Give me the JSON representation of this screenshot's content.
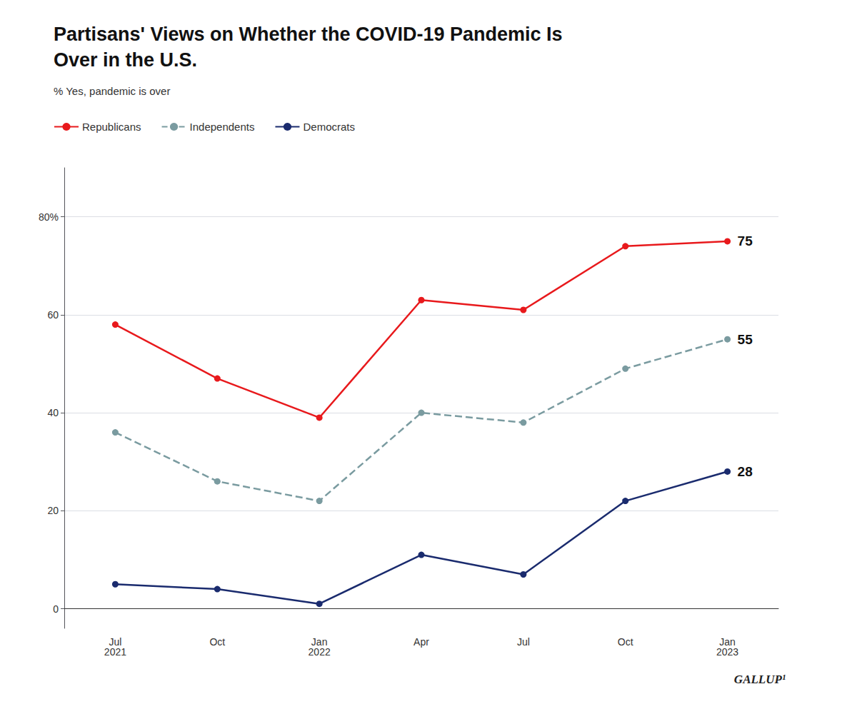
{
  "chart_data": {
    "type": "line",
    "title": "Partisans' Views on Whether the COVID-19 Pandemic Is\nOver in the U.S.",
    "subtitle": "% Yes, pandemic is over",
    "categories": [
      "Jul\n2021",
      "Oct",
      "Jan\n2022",
      "Apr",
      "Jul",
      "Oct",
      "Jan\n2023"
    ],
    "series": [
      {
        "name": "Republicans",
        "color": "#e8191c",
        "marker": "circle",
        "line_style": "solid",
        "values": [
          58,
          47,
          39,
          63,
          61,
          74,
          75
        ]
      },
      {
        "name": "Independents",
        "color": "#7a9ba0",
        "marker": "circle",
        "line_style": "dashed",
        "values": [
          36,
          26,
          22,
          40,
          38,
          49,
          55
        ]
      },
      {
        "name": "Democrats",
        "color": "#1a2b6e",
        "marker": "circle",
        "line_style": "solid",
        "values": [
          5,
          4,
          1,
          11,
          7,
          22,
          28
        ]
      }
    ],
    "ylim": [
      -4,
      90
    ],
    "yticks": [
      0,
      20,
      40,
      60,
      {
        "value": 80,
        "label": "80%"
      }
    ],
    "grid": true,
    "legend": "upper left",
    "annotations": [
      {
        "text": "75",
        "series": "Republicans",
        "x": "Jan\n2023",
        "y": 75
      },
      {
        "text": "55",
        "series": "Independents",
        "x": "Jan\n2023",
        "y": 55
      },
      {
        "text": "28",
        "series": "Democrats",
        "x": "Jan\n2023",
        "y": 28
      },
      {
        "text": "GALLUP¹"
      }
    ]
  }
}
